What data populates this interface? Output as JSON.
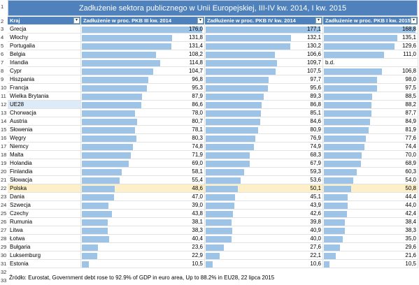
{
  "title": "Zadłużenie sektora publicznego w Unii Europejskiej, III-IV kw. 2014, I kw. 2015",
  "headers": {
    "country": "Kraj",
    "q3_2014": "Zadłużenie w proc. PKB III kw. 2014",
    "q4_2014": "Zadłużenie w proc. PKB IV kw. 2014",
    "q1_2015": "Zadłużenie w proc. PKB I kw. 2015"
  },
  "row_numbers": [
    "1",
    "2",
    "3",
    "4",
    "5",
    "6",
    "7",
    "8",
    "9",
    "10",
    "11",
    "12",
    "13",
    "14",
    "15",
    "16",
    "17",
    "18",
    "19",
    "20",
    "21",
    "22",
    "23",
    "24",
    "25",
    "26",
    "27",
    "28",
    "29",
    "30",
    "31",
    "32",
    "33"
  ],
  "rows": [
    {
      "country": "Grecja",
      "q3": "176,0",
      "q4": "177,1",
      "q1": "168,8"
    },
    {
      "country": "Włochy",
      "q3": "131,8",
      "q4": "132,1",
      "q1": "135,1"
    },
    {
      "country": "Portugalia",
      "q3": "131,4",
      "q4": "130,2",
      "q1": "129,6"
    },
    {
      "country": "Belgia",
      "q3": "108,2",
      "q4": "106,6",
      "q1": "111,0"
    },
    {
      "country": "Irlandia",
      "q3": "114,8",
      "q4": "109,7",
      "q1": "b.d."
    },
    {
      "country": "Cypr",
      "q3": "104,7",
      "q4": "107,5",
      "q1": "106,8"
    },
    {
      "country": "Hiszpania",
      "q3": "96,8",
      "q4": "97,7",
      "q1": "98,0"
    },
    {
      "country": "Francja",
      "q3": "95,3",
      "q4": "95,6",
      "q1": "97,5"
    },
    {
      "country": "Wielka Brytania",
      "q3": "87,9",
      "q4": "89,3",
      "q1": "88,5"
    },
    {
      "country": "UE28",
      "q3": "86,6",
      "q4": "86,8",
      "q1": "88,2"
    },
    {
      "country": "Chorwacja",
      "q3": "78,0",
      "q4": "85,1",
      "q1": "87,7"
    },
    {
      "country": "Austria",
      "q3": "80,7",
      "q4": "84,6",
      "q1": "84,9"
    },
    {
      "country": "Słowenia",
      "q3": "78,1",
      "q4": "80,9",
      "q1": "81,9"
    },
    {
      "country": "Węgry",
      "q3": "80,3",
      "q4": "76,9",
      "q1": "77,6"
    },
    {
      "country": "Niemcy",
      "q3": "74,8",
      "q4": "74,9",
      "q1": "74,4"
    },
    {
      "country": "Malta",
      "q3": "71,9",
      "q4": "68,3",
      "q1": "70,0"
    },
    {
      "country": "Holandia",
      "q3": "69,0",
      "q4": "67,9",
      "q1": "68,9"
    },
    {
      "country": "Finlandia",
      "q3": "58,1",
      "q4": "59,3",
      "q1": "60,3"
    },
    {
      "country": "Słowacja",
      "q3": "55,4",
      "q4": "53,6",
      "q1": "54,0"
    },
    {
      "country": "Polska",
      "q3": "48,6",
      "q4": "50,1",
      "q1": "50,8"
    },
    {
      "country": "Dania",
      "q3": "47,0",
      "q4": "45,1",
      "q1": "44,4"
    },
    {
      "country": "Szwecja",
      "q3": "39,0",
      "q4": "43,9",
      "q1": "44,0"
    },
    {
      "country": "Czechy",
      "q3": "43,8",
      "q4": "42,6",
      "q1": "42,4"
    },
    {
      "country": "Rumunia",
      "q3": "38,1",
      "q4": "39,8",
      "q1": "38,4"
    },
    {
      "country": "Litwa",
      "q3": "38,3",
      "q4": "40,9",
      "q1": "38,3"
    },
    {
      "country": "Łotwa",
      "q3": "40,4",
      "q4": "40,0",
      "q1": "35,0"
    },
    {
      "country": "Bułgaria",
      "q3": "23,6",
      "q4": "27,6",
      "q1": "29,6"
    },
    {
      "country": "Luksemburg",
      "q3": "22,9",
      "q4": "22,1",
      "q1": "21,6"
    },
    {
      "country": "Estonia",
      "q3": "10,5",
      "q4": "10,6",
      "q1": "10,5"
    }
  ],
  "footer": "Źródło: Eurostat, Government debt rose to 92.9% of GDP in euro area, Up to 88.2% in EU28, 22 lipca 2015",
  "colors": {
    "header": "#4f81bd",
    "bar": "#9dc3e6",
    "highlight_poland": "#fdf0c8",
    "highlight_ue": "#ddeaf7"
  },
  "icons": {
    "filter_dropdown": "filter-dropdown-icon"
  }
}
